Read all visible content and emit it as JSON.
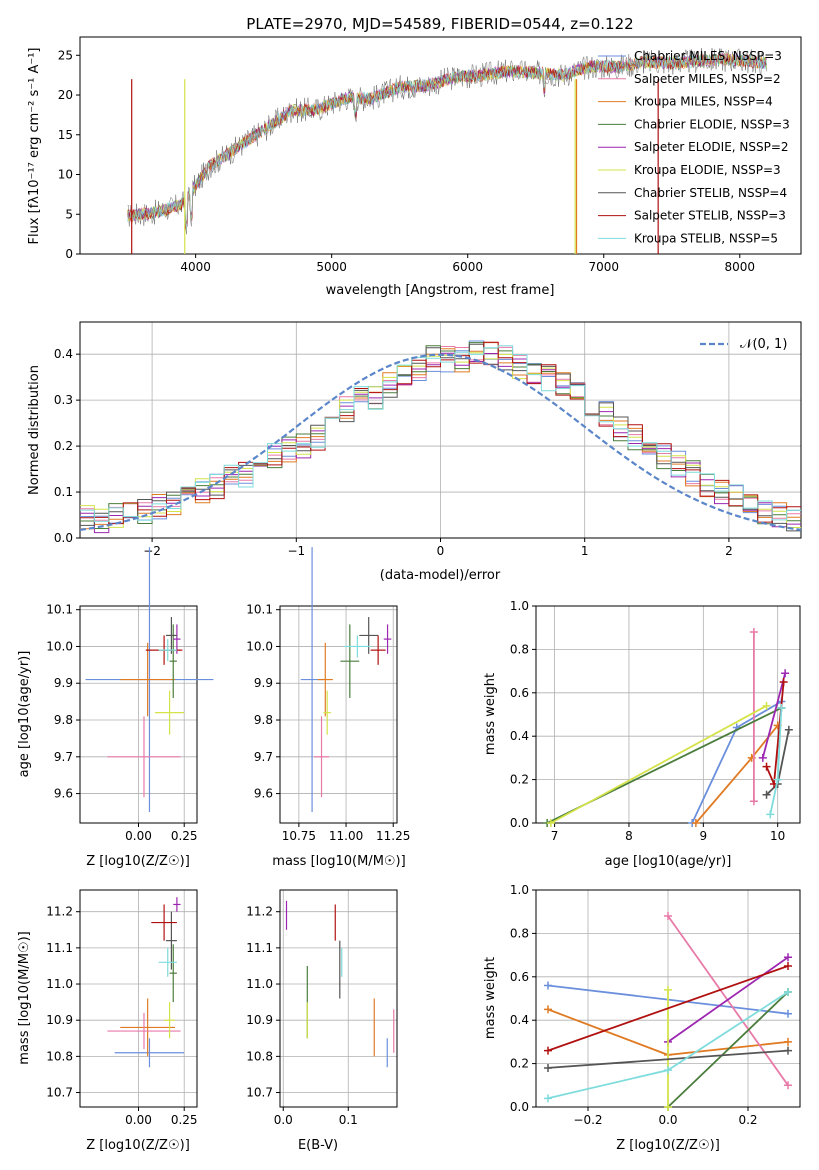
{
  "colors": {
    "blue": "#6b8fdc",
    "orange": "#e07b24",
    "pink": "#e87aa8",
    "green": "#4a7d3c",
    "purple": "#9c27b0",
    "yellow": "#d4e34a",
    "gray": "#555555",
    "red": "#b01010",
    "cyan": "#7fdcdc"
  },
  "spectrum": {
    "title": "PLATE=2970, MJD=54589, FIBERID=0544, z=0.122",
    "xlabel": "wavelength [Angstrom, rest frame]",
    "ylabel": "Flux [fλ10⁻¹⁷ erg cm⁻² s⁻¹ A⁻¹]",
    "xticks": [
      "4000",
      "5000",
      "6000",
      "7000",
      "8000"
    ],
    "yticks": [
      "0",
      "5",
      "10",
      "15",
      "20",
      "25"
    ],
    "legend": [
      {
        "label": "Chabrier MILES, NSSP=3",
        "color": "#6b8fdc"
      },
      {
        "label": "Salpeter MILES, NSSP=2",
        "color": "#e87aa8"
      },
      {
        "label": "Kroupa MILES, NSSP=4",
        "color": "#e07b24"
      },
      {
        "label": "Chabrier ELODIE, NSSP=3",
        "color": "#4a7d3c"
      },
      {
        "label": "Salpeter ELODIE, NSSP=2",
        "color": "#9c27b0"
      },
      {
        "label": "Kroupa ELODIE, NSSP=3",
        "color": "#d4e34a"
      },
      {
        "label": "Chabrier STELIB, NSSP=4",
        "color": "#555555"
      },
      {
        "label": "Salpeter STELIB, NSSP=3",
        "color": "#b01010"
      },
      {
        "label": "Kroupa STELIB, NSSP=5",
        "color": "#7fdcdc"
      }
    ]
  },
  "residuals": {
    "xlabel": "(data-model)/error",
    "ylabel": "Normed distribution",
    "xticks": [
      "−2",
      "−1",
      "0",
      "1",
      "2"
    ],
    "yticks": [
      "0.0",
      "0.1",
      "0.2",
      "0.3",
      "0.4"
    ],
    "legend": "𝒩(0, 1)"
  },
  "panels": {
    "age_z": {
      "xlabel": "Z [log10(Z/Z☉)]",
      "ylabel": "age  [log10(age/yr)]",
      "xticks": [
        "0.00",
        "0.25"
      ],
      "yticks": [
        "9.6",
        "9.7",
        "9.8",
        "9.9",
        "10.0",
        "10.1"
      ]
    },
    "age_mass": {
      "xlabel": "mass [log10(M/M☉)]",
      "xticks": [
        "10.75",
        "11.00",
        "11.25"
      ],
      "yticks": [
        "9.6",
        "9.7",
        "9.8",
        "9.9",
        "10.0",
        "10.1"
      ]
    },
    "mw_age": {
      "xlabel": "age  [log10(age/yr)]",
      "ylabel": "mass weight",
      "xticks": [
        "7",
        "8",
        "9",
        "10"
      ],
      "yticks": [
        "0.0",
        "0.2",
        "0.4",
        "0.6",
        "0.8",
        "1.0"
      ]
    },
    "mass_z": {
      "xlabel": "Z [log10(Z/Z☉)]",
      "ylabel": "mass [log10(M/M☉)]",
      "xticks": [
        "0.00",
        "0.25"
      ],
      "yticks": [
        "10.7",
        "10.8",
        "10.9",
        "11.0",
        "11.1",
        "11.2"
      ]
    },
    "mass_ebv": {
      "xlabel": "E(B-V)",
      "xticks": [
        "0.0",
        "0.1"
      ],
      "yticks": [
        "10.7",
        "10.8",
        "10.9",
        "11.0",
        "11.1",
        "11.2"
      ]
    },
    "mw_z": {
      "xlabel": "Z [log10(Z/Z☉)]",
      "ylabel": "mass weight",
      "xticks": [
        "−0.2",
        "0.0",
        "0.2"
      ],
      "yticks": [
        "0.0",
        "0.2",
        "0.4",
        "0.6",
        "0.8",
        "1.0"
      ]
    }
  },
  "chart_data": [
    {
      "type": "line",
      "title": "PLATE=2970, MJD=54589, FIBERID=0544, z=0.122",
      "xlabel": "wavelength [Angstrom, rest frame]",
      "ylabel": "Flux [fλ10⁻¹⁷ erg cm⁻² s⁻¹ A⁻¹]",
      "xlim": [
        3150,
        8450
      ],
      "ylim": [
        0,
        27.3
      ],
      "x": [
        3500,
        3700,
        3900,
        4100,
        4300,
        4500,
        4700,
        4900,
        5100,
        5300,
        5500,
        5700,
        5900,
        6100,
        6300,
        6500,
        6700,
        6900,
        7100,
        7300,
        7500,
        7700,
        7900,
        8100,
        8200
      ],
      "series": [
        {
          "name": "data",
          "values": [
            4.8,
            5.2,
            6.2,
            11.0,
            13.3,
            15.6,
            18.0,
            18.2,
            19.6,
            19.6,
            21.0,
            21.2,
            22.2,
            22.5,
            23.0,
            22.8,
            22.5,
            23.6,
            23.5,
            24.2,
            24.0,
            24.3,
            24.5,
            24.2,
            24.0
          ]
        }
      ],
      "legend": "top-right"
    },
    {
      "type": "bar",
      "xlabel": "(data-model)/error",
      "ylabel": "Normed distribution",
      "xlim": [
        -2.5,
        2.5
      ],
      "ylim": [
        0,
        0.47
      ],
      "gaussian": "N(0,1)",
      "bin_edges_start": -2.5,
      "bin_width": 0.1,
      "values": [
        0.05,
        0.04,
        0.05,
        0.05,
        0.06,
        0.07,
        0.07,
        0.09,
        0.1,
        0.11,
        0.13,
        0.14,
        0.16,
        0.18,
        0.19,
        0.2,
        0.22,
        0.25,
        0.28,
        0.3,
        0.31,
        0.33,
        0.35,
        0.37,
        0.39,
        0.39,
        0.39,
        0.4,
        0.4,
        0.39,
        0.37,
        0.36,
        0.35,
        0.33,
        0.31,
        0.28,
        0.27,
        0.24,
        0.22,
        0.19,
        0.18,
        0.16,
        0.14,
        0.12,
        0.1,
        0.09,
        0.07,
        0.06,
        0.05,
        0.04
      ]
    },
    {
      "type": "scatter",
      "name": "age vs Z",
      "xlabel": "Z [log10(Z/Z☉)]",
      "ylabel": "age  [log10(age/yr)]",
      "xlim": [
        -0.32,
        0.32
      ],
      "ylim": [
        9.52,
        10.11
      ],
      "points": [
        {
          "x": 0.06,
          "y": 9.91,
          "xerr": 0.35,
          "yerr": 0.36,
          "c": "blue"
        },
        {
          "x": 0.05,
          "y": 9.91,
          "xerr": 0.15,
          "yerr": 0.1,
          "c": "orange"
        },
        {
          "x": 0.03,
          "y": 9.7,
          "xerr": 0.2,
          "yerr": 0.11,
          "c": "pink"
        },
        {
          "x": 0.19,
          "y": 9.96,
          "xerr": 0.02,
          "yerr": 0.1,
          "c": "green"
        },
        {
          "x": 0.21,
          "y": 10.02,
          "xerr": 0.02,
          "yerr": 0.04,
          "c": "purple"
        },
        {
          "x": 0.17,
          "y": 9.82,
          "xerr": 0.08,
          "yerr": 0.06,
          "c": "yellow"
        },
        {
          "x": 0.18,
          "y": 10.03,
          "xerr": 0.03,
          "yerr": 0.05,
          "c": "gray"
        },
        {
          "x": 0.14,
          "y": 9.99,
          "xerr": 0.1,
          "yerr": 0.04,
          "c": "red"
        },
        {
          "x": 0.16,
          "y": 9.99,
          "xerr": 0.05,
          "yerr": 0.03,
          "c": "cyan"
        }
      ]
    },
    {
      "type": "scatter",
      "name": "age vs mass",
      "xlabel": "mass [log10(M/M☉)]",
      "xlim": [
        10.65,
        11.27
      ],
      "ylim": [
        9.52,
        10.11
      ],
      "points": [
        {
          "x": 10.82,
          "y": 9.91,
          "xerr": 0.06,
          "yerr": 0.36,
          "c": "blue"
        },
        {
          "x": 10.89,
          "y": 9.91,
          "xerr": 0.04,
          "yerr": 0.1,
          "c": "orange"
        },
        {
          "x": 10.87,
          "y": 9.7,
          "xerr": 0.04,
          "yerr": 0.11,
          "c": "pink"
        },
        {
          "x": 11.02,
          "y": 9.96,
          "xerr": 0.05,
          "yerr": 0.1,
          "c": "green"
        },
        {
          "x": 11.22,
          "y": 10.02,
          "xerr": 0.02,
          "yerr": 0.04,
          "c": "purple"
        },
        {
          "x": 10.9,
          "y": 9.82,
          "xerr": 0.02,
          "yerr": 0.06,
          "c": "yellow"
        },
        {
          "x": 11.12,
          "y": 10.03,
          "xerr": 0.05,
          "yerr": 0.05,
          "c": "gray"
        },
        {
          "x": 11.17,
          "y": 9.99,
          "xerr": 0.04,
          "yerr": 0.04,
          "c": "red"
        },
        {
          "x": 11.06,
          "y": 10.0,
          "xerr": 0.07,
          "yerr": 0.03,
          "c": "cyan"
        }
      ]
    },
    {
      "type": "line",
      "name": "mass weight vs age",
      "xlabel": "age  [log10(age/yr)]",
      "ylabel": "mass weight",
      "xlim": [
        6.75,
        10.3
      ],
      "ylim": [
        0,
        1.0
      ],
      "series": [
        {
          "c": "blue",
          "x": [
            8.85,
            9.45,
            10.05
          ],
          "y": [
            0.0,
            0.44,
            0.56
          ]
        },
        {
          "c": "orange",
          "x": [
            8.9,
            9.65,
            10.0
          ],
          "y": [
            0.0,
            0.3,
            0.45
          ]
        },
        {
          "c": "pink",
          "x": [
            9.68,
            9.68
          ],
          "y": [
            0.1,
            0.88
          ]
        },
        {
          "c": "green",
          "x": [
            6.9,
            10.05
          ],
          "y": [
            0.0,
            0.53
          ]
        },
        {
          "c": "purple",
          "x": [
            9.8,
            10.1
          ],
          "y": [
            0.3,
            0.69
          ]
        },
        {
          "c": "yellow",
          "x": [
            6.95,
            9.85
          ],
          "y": [
            0.0,
            0.54
          ]
        },
        {
          "c": "gray",
          "x": [
            9.85,
            10.0,
            10.15
          ],
          "y": [
            0.13,
            0.18,
            0.43
          ]
        },
        {
          "c": "red",
          "x": [
            9.85,
            9.95,
            10.08
          ],
          "y": [
            0.26,
            0.18,
            0.65
          ]
        },
        {
          "c": "cyan",
          "x": [
            9.9,
            10.0,
            10.05
          ],
          "y": [
            0.04,
            0.2,
            0.53
          ]
        }
      ]
    },
    {
      "type": "scatter",
      "name": "mass vs Z",
      "xlabel": "Z [log10(Z/Z☉)]",
      "ylabel": "mass [log10(M/M☉)]",
      "xlim": [
        -0.32,
        0.32
      ],
      "ylim": [
        10.66,
        11.26
      ],
      "points": [
        {
          "x": 0.06,
          "y": 10.81,
          "xerr": 0.19,
          "yerr": 0.04,
          "c": "blue"
        },
        {
          "x": 0.05,
          "y": 10.88,
          "xerr": 0.15,
          "yerr": 0.08,
          "c": "orange"
        },
        {
          "x": 0.03,
          "y": 10.87,
          "xerr": 0.2,
          "yerr": 0.05,
          "c": "pink"
        },
        {
          "x": 0.19,
          "y": 11.03,
          "xerr": 0.02,
          "yerr": 0.08,
          "c": "green"
        },
        {
          "x": 0.21,
          "y": 11.22,
          "xerr": 0.02,
          "yerr": 0.02,
          "c": "purple"
        },
        {
          "x": 0.17,
          "y": 10.9,
          "xerr": 0.03,
          "yerr": 0.05,
          "c": "yellow"
        },
        {
          "x": 0.18,
          "y": 11.12,
          "xerr": 0.03,
          "yerr": 0.08,
          "c": "gray"
        },
        {
          "x": 0.14,
          "y": 11.17,
          "xerr": 0.07,
          "yerr": 0.05,
          "c": "red"
        },
        {
          "x": 0.16,
          "y": 11.06,
          "xerr": 0.05,
          "yerr": 0.04,
          "c": "cyan"
        }
      ]
    },
    {
      "type": "scatter",
      "name": "mass vs E(B-V)",
      "xlabel": "E(B-V)",
      "xlim": [
        -0.005,
        0.175
      ],
      "ylim": [
        10.66,
        11.26
      ],
      "points": [
        {
          "x": 0.16,
          "y": 10.81,
          "yerr": 0.04,
          "c": "blue"
        },
        {
          "x": 0.14,
          "y": 10.88,
          "yerr": 0.08,
          "c": "orange"
        },
        {
          "x": 0.17,
          "y": 10.87,
          "yerr": 0.06,
          "c": "pink"
        },
        {
          "x": 0.037,
          "y": 10.95,
          "yerr": 0.1,
          "c": "green"
        },
        {
          "x": 0.005,
          "y": 11.19,
          "yerr": 0.04,
          "c": "purple"
        },
        {
          "x": 0.037,
          "y": 10.9,
          "yerr": 0.05,
          "c": "yellow"
        },
        {
          "x": 0.087,
          "y": 11.04,
          "yerr": 0.08,
          "c": "gray"
        },
        {
          "x": 0.08,
          "y": 11.17,
          "yerr": 0.05,
          "c": "red"
        },
        {
          "x": 0.09,
          "y": 11.06,
          "yerr": 0.04,
          "c": "cyan"
        }
      ]
    },
    {
      "type": "line",
      "name": "mass weight vs Z",
      "xlabel": "Z [log10(Z/Z☉)]",
      "ylabel": "mass weight",
      "xlim": [
        -0.33,
        0.33
      ],
      "ylim": [
        0,
        1.0
      ],
      "series": [
        {
          "c": "blue",
          "x": [
            -0.3,
            0.3
          ],
          "y": [
            0.56,
            0.43
          ]
        },
        {
          "c": "orange",
          "x": [
            -0.3,
            0.0,
            0.3
          ],
          "y": [
            0.45,
            0.24,
            0.3
          ]
        },
        {
          "c": "pink",
          "x": [
            0.0,
            0.3
          ],
          "y": [
            0.88,
            0.1
          ]
        },
        {
          "c": "green",
          "x": [
            0.0,
            0.3
          ],
          "y": [
            0.0,
            0.53
          ]
        },
        {
          "c": "purple",
          "x": [
            0.0,
            0.3
          ],
          "y": [
            0.3,
            0.69
          ]
        },
        {
          "c": "yellow",
          "x": [
            0.0,
            0.0
          ],
          "y": [
            0.0,
            0.54
          ]
        },
        {
          "c": "gray",
          "x": [
            -0.3,
            0.3
          ],
          "y": [
            0.18,
            0.26
          ]
        },
        {
          "c": "red",
          "x": [
            -0.3,
            0.3
          ],
          "y": [
            0.26,
            0.65
          ]
        },
        {
          "c": "cyan",
          "x": [
            -0.3,
            0.0,
            0.3
          ],
          "y": [
            0.04,
            0.17,
            0.53
          ]
        }
      ]
    }
  ]
}
